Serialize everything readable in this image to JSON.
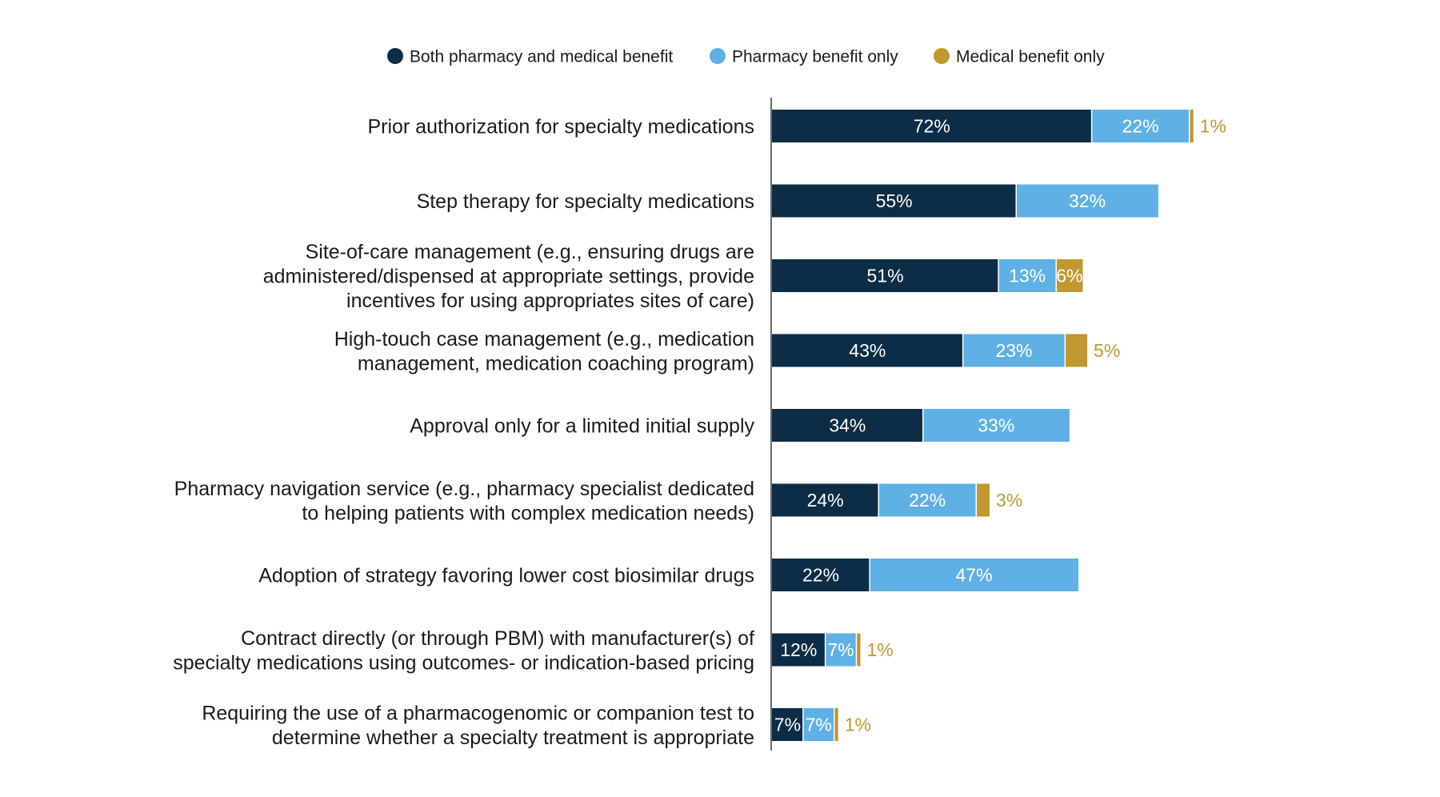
{
  "chart_data": {
    "type": "bar",
    "orientation": "horizontal",
    "stacked": true,
    "title": "",
    "xlabel": "",
    "ylabel": "",
    "xlim": [
      0,
      100
    ],
    "grid": false,
    "legend_position": "top",
    "categories": [
      [
        "Prior authorization for specialty medications"
      ],
      [
        "Step therapy for specialty medications"
      ],
      [
        "Site-of-care management (e.g., ensuring drugs are",
        "administered/dispensed at appropriate settings, provide",
        "incentives for using appropriates sites of care)"
      ],
      [
        "High-touch case management (e.g., medication",
        "management, medication coaching program)"
      ],
      [
        "Approval only for a limited initial supply"
      ],
      [
        "Pharmacy navigation service (e.g., pharmacy specialist dedicated",
        "to helping patients with complex medication needs)"
      ],
      [
        "Adoption of strategy favoring lower cost biosimilar drugs"
      ],
      [
        "Contract directly (or through PBM) with manufacturer(s) of",
        "specialty medications using outcomes- or indication-based pricing"
      ],
      [
        "Requiring the use of a pharmacogenomic or companion test to",
        "determine whether a specialty treatment is appropriate"
      ]
    ],
    "series": [
      {
        "name": "Both pharmacy and medical benefit",
        "color": "#0c2d45",
        "values": [
          72,
          55,
          51,
          43,
          34,
          24,
          22,
          12,
          7
        ],
        "labels": [
          "72%",
          "55%",
          "51%",
          "43%",
          "34%",
          "24%",
          "22%",
          "12%",
          "7%"
        ]
      },
      {
        "name": "Pharmacy benefit only",
        "color": "#5fb0e4",
        "values": [
          22,
          32,
          13,
          23,
          33,
          22,
          47,
          7,
          7
        ],
        "labels": [
          "22%",
          "32%",
          "13%",
          "23%",
          "33%",
          "22%",
          "47%",
          "7%",
          "7%"
        ]
      },
      {
        "name": "Medical benefit only",
        "color": "#c0982f",
        "values": [
          1,
          0,
          6,
          5,
          0,
          3,
          0,
          1,
          1
        ],
        "labels": [
          "1%",
          "",
          "6%",
          "5%",
          "",
          "3%",
          "",
          "1%",
          "1%"
        ]
      }
    ]
  }
}
